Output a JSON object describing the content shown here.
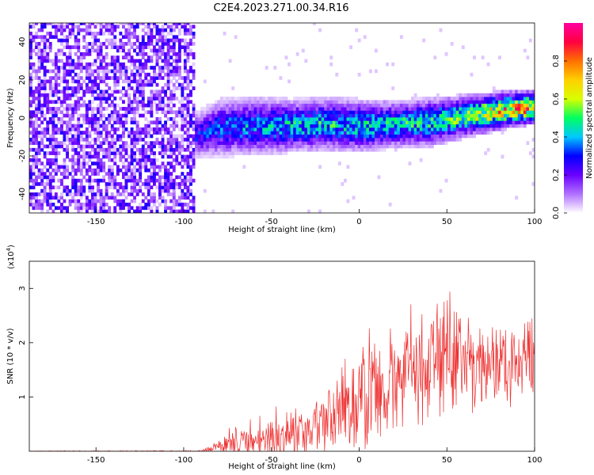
{
  "title": "C2E4.2023.271.00.34.R16",
  "chart_data": [
    {
      "type": "heatmap",
      "title": "C2E4.2023.271.00.34.R16",
      "xlabel": "Height of straight line (km)",
      "ylabel": "Frequency (Hz)",
      "xlim": [
        -188,
        100
      ],
      "ylim": [
        -50,
        50
      ],
      "x_ticks": [
        -150,
        -100,
        -50,
        0,
        50,
        100
      ],
      "y_ticks": [
        -40,
        -20,
        0,
        20,
        40
      ],
      "colorbar": {
        "label": "Normalized spectral amplitude",
        "range": [
          0.0,
          1.0
        ],
        "ticks": [
          "0.0",
          "0.2",
          "0.4",
          "0.6",
          "0.8"
        ],
        "tick_values": [
          0.0,
          0.2,
          0.4,
          0.6,
          0.8
        ],
        "colors": [
          "#ffffff",
          "#b070ff",
          "#6a00ff",
          "#0000ff",
          "#00c8ff",
          "#00ff60",
          "#d8ff00",
          "#ffd000",
          "#ff7000",
          "#ff0040",
          "#ff00a0"
        ]
      },
      "noise_region": {
        "x": [
          -188,
          -95
        ],
        "amplitude": 0.25
      },
      "signal_band": [
        {
          "x": -95,
          "center": -10,
          "width": 9,
          "amplitude": 0.3
        },
        {
          "x": -80,
          "center": -6,
          "width": 12,
          "amplitude": 0.35
        },
        {
          "x": -60,
          "center": -5,
          "width": 12,
          "amplitude": 0.4
        },
        {
          "x": -40,
          "center": -5,
          "width": 11,
          "amplitude": 0.45
        },
        {
          "x": -20,
          "center": -4,
          "width": 11,
          "amplitude": 0.45
        },
        {
          "x": 0,
          "center": -5,
          "width": 11,
          "amplitude": 0.45
        },
        {
          "x": 20,
          "center": -4,
          "width": 10,
          "amplitude": 0.45
        },
        {
          "x": 40,
          "center": -3,
          "width": 10,
          "amplitude": 0.5
        },
        {
          "x": 60,
          "center": 0,
          "width": 9,
          "amplitude": 0.55
        },
        {
          "x": 80,
          "center": 3,
          "width": 8,
          "amplitude": 0.75
        },
        {
          "x": 100,
          "center": 5,
          "width": 7,
          "amplitude": 0.85
        }
      ]
    },
    {
      "type": "line",
      "xlabel": "Height of straight line (km)",
      "ylabel": "SNR (10 * v/v)",
      "y_multiplier_label": "(x10",
      "y_multiplier_exp": "4",
      "y_multiplier_close": ")",
      "xlim": [
        -188,
        100
      ],
      "ylim": [
        0,
        3.5
      ],
      "x_ticks": [
        -150,
        -100,
        -50,
        0,
        50,
        100
      ],
      "y_ticks": [
        1,
        2,
        3
      ],
      "color": "#ee3030",
      "envelope": [
        {
          "x": -188,
          "mean": 0.0,
          "spread": 0.01
        },
        {
          "x": -90,
          "mean": 0.0,
          "spread": 0.02
        },
        {
          "x": -80,
          "mean": 0.08,
          "spread": 0.15
        },
        {
          "x": -70,
          "mean": 0.15,
          "spread": 0.3
        },
        {
          "x": -50,
          "mean": 0.25,
          "spread": 0.45
        },
        {
          "x": -30,
          "mean": 0.35,
          "spread": 0.6
        },
        {
          "x": -10,
          "mean": 0.7,
          "spread": 0.9
        },
        {
          "x": 10,
          "mean": 1.1,
          "spread": 1.1
        },
        {
          "x": 30,
          "mean": 1.55,
          "spread": 1.3
        },
        {
          "x": 45,
          "mean": 1.75,
          "spread": 1.6
        },
        {
          "x": 60,
          "mean": 1.7,
          "spread": 1.2
        },
        {
          "x": 80,
          "mean": 1.6,
          "spread": 0.9
        },
        {
          "x": 100,
          "mean": 1.7,
          "spread": 0.9
        }
      ]
    }
  ]
}
